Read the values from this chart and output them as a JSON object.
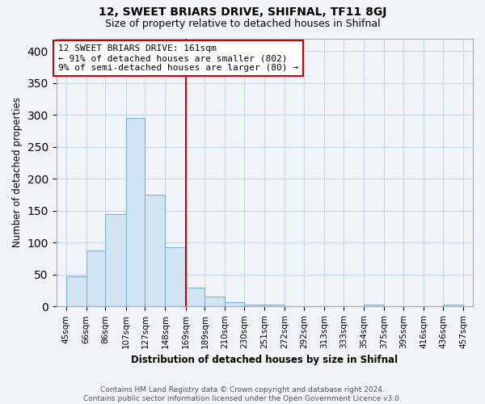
{
  "title": "12, SWEET BRIARS DRIVE, SHIFNAL, TF11 8GJ",
  "subtitle": "Size of property relative to detached houses in Shifnal",
  "xlabel": "Distribution of detached houses by size in Shifnal",
  "ylabel": "Number of detached properties",
  "bar_left_edges": [
    45,
    66,
    86,
    107,
    127,
    148,
    169,
    189,
    210,
    230,
    251,
    272,
    292,
    313,
    333,
    354,
    375,
    395,
    416,
    436
  ],
  "bar_right_edges": [
    66,
    86,
    107,
    127,
    148,
    169,
    189,
    210,
    230,
    251,
    272,
    292,
    313,
    333,
    354,
    375,
    395,
    416,
    436,
    457
  ],
  "bar_heights": [
    47,
    88,
    145,
    295,
    175,
    93,
    30,
    15,
    7,
    3,
    3,
    0,
    0,
    0,
    0,
    3,
    0,
    0,
    0,
    3
  ],
  "bar_color": "#d0e4f2",
  "bar_edge_color": "#7ab4d8",
  "property_line_x": 169,
  "property_line_color": "#cc0000",
  "annotation_text": "12 SWEET BRIARS DRIVE: 161sqm\n← 91% of detached houses are smaller (802)\n9% of semi-detached houses are larger (80) →",
  "annotation_box_color": "#cc0000",
  "ylim": [
    0,
    420
  ],
  "xlim": [
    35,
    467
  ],
  "grid_color": "#c8d8e8",
  "background_color": "#f0f4f8",
  "footer_line1": "Contains HM Land Registry data © Crown copyright and database right 2024.",
  "footer_line2": "Contains public sector information licensed under the Open Government Licence v3.0.",
  "tick_labels": [
    "45sqm",
    "66sqm",
    "86sqm",
    "107sqm",
    "127sqm",
    "148sqm",
    "169sqm",
    "189sqm",
    "210sqm",
    "230sqm",
    "251sqm",
    "272sqm",
    "292sqm",
    "313sqm",
    "333sqm",
    "354sqm",
    "375sqm",
    "395sqm",
    "416sqm",
    "436sqm",
    "457sqm"
  ],
  "tick_positions": [
    45,
    66,
    86,
    107,
    127,
    148,
    169,
    189,
    210,
    230,
    251,
    272,
    292,
    313,
    333,
    354,
    375,
    395,
    416,
    436,
    457
  ],
  "ytick_positions": [
    0,
    50,
    100,
    150,
    200,
    250,
    300,
    350,
    400
  ],
  "title_fontsize": 10,
  "subtitle_fontsize": 9
}
